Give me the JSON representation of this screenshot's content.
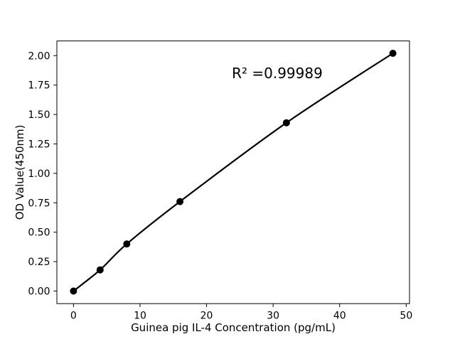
{
  "chart_data": {
    "type": "scatter",
    "x": [
      0,
      4,
      8,
      16,
      32,
      48
    ],
    "y": [
      0.0,
      0.18,
      0.4,
      0.76,
      1.43,
      2.02
    ],
    "fit_line": true,
    "title": "",
    "xlabel": "Guinea pig IL-4 Concentration (pg/mL)",
    "ylabel": "OD Value(450nm)",
    "xtick_labels": [
      "0",
      "10",
      "20",
      "30",
      "40",
      "50"
    ],
    "ytick_labels": [
      "0.00",
      "0.25",
      "0.50",
      "0.75",
      "1.00",
      "1.25",
      "1.50",
      "1.75",
      "2.00"
    ],
    "xlim": [
      -2.5,
      50.5
    ],
    "ylim": [
      -0.107,
      2.125
    ],
    "grid": false,
    "legend": null,
    "annotation": {
      "text": "R² =0.99989",
      "x": 23.8,
      "y": 1.81
    },
    "line_color": "#000000",
    "marker_color": "#000000",
    "axis_color": "#000000",
    "background_color": "#ffffff"
  }
}
